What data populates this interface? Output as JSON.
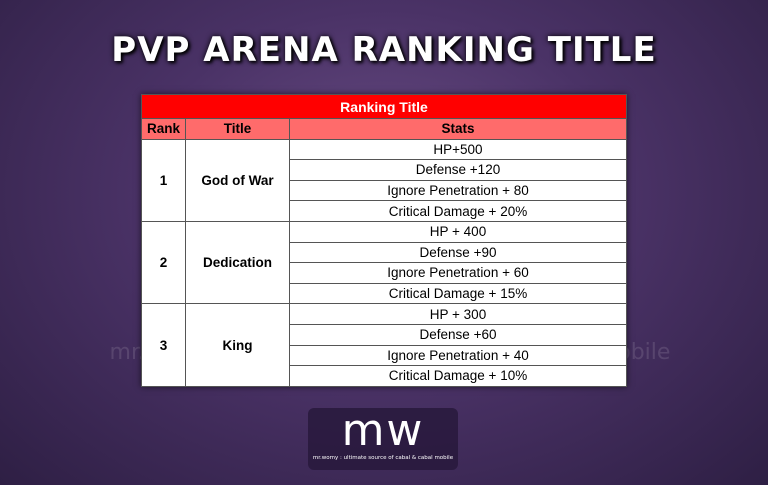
{
  "header": {
    "title": "PVP ARENA RANKING TITLE"
  },
  "table": {
    "title": "Ranking Title",
    "columns": [
      "Rank",
      "Title",
      "Stats"
    ],
    "rows": [
      {
        "rank": "1",
        "title": "God of War",
        "stats": [
          "HP+500",
          "Defense +120",
          "Ignore Penetration + 80",
          "Critical Damage + 20%"
        ]
      },
      {
        "rank": "2",
        "title": "Dedication",
        "stats": [
          "HP + 400",
          "Defense +90",
          "Ignore Penetration + 60",
          "Critical Damage + 15%"
        ]
      },
      {
        "rank": "3",
        "title": "King",
        "stats": [
          "HP + 300",
          "Defense +60",
          "Ignore Penetration + 40",
          "Critical Damage + 10%"
        ]
      }
    ]
  },
  "logo": {
    "mark": "mw",
    "tagline": "mr.womy : ultimate source of cabal & cabal mobile"
  }
}
